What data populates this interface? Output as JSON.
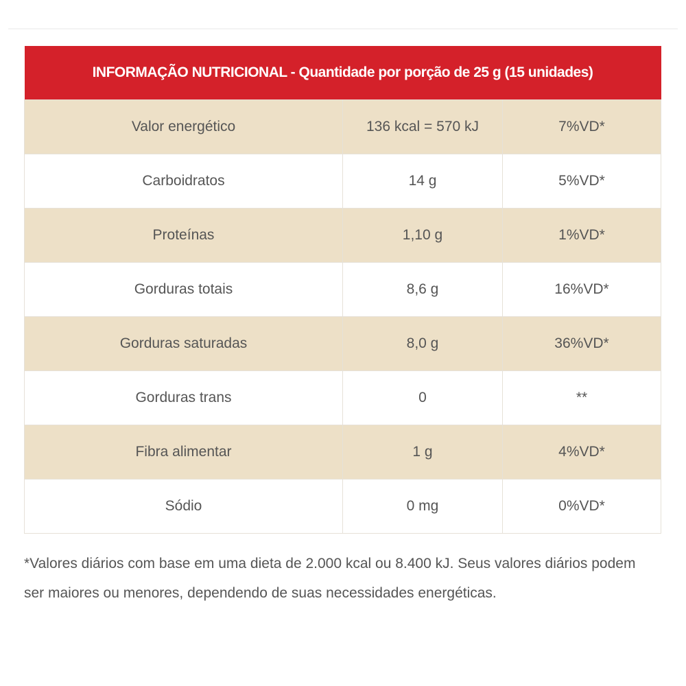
{
  "table": {
    "title": "INFORMAÇÃO NUTRICIONAL - Quantidade por porção de 25 g (15 unidades)",
    "rows": [
      {
        "nutrient": "Valor energético",
        "amount": "136 kcal = 570 kJ",
        "dv": "7%VD*"
      },
      {
        "nutrient": "Carboidratos",
        "amount": "14 g",
        "dv": "5%VD*"
      },
      {
        "nutrient": "Proteínas",
        "amount": "1,10 g",
        "dv": "1%VD*"
      },
      {
        "nutrient": "Gorduras totais",
        "amount": "8,6 g",
        "dv": "16%VD*"
      },
      {
        "nutrient": "Gorduras saturadas",
        "amount": "8,0 g",
        "dv": "36%VD*"
      },
      {
        "nutrient": "Gorduras trans",
        "amount": "0",
        "dv": "**"
      },
      {
        "nutrient": "Fibra alimentar",
        "amount": "1 g",
        "dv": "4%VD*"
      },
      {
        "nutrient": "Sódio",
        "amount": "0 mg",
        "dv": "0%VD*"
      }
    ]
  },
  "footnote": "*Valores diários com base em uma dieta de 2.000 kcal ou 8.400 kJ. Seus valores diários podem ser maiores ou menores, dependendo de suas necessidades energéticas.",
  "colors": {
    "header": "#d4212a",
    "beige": "#ede0c7"
  }
}
